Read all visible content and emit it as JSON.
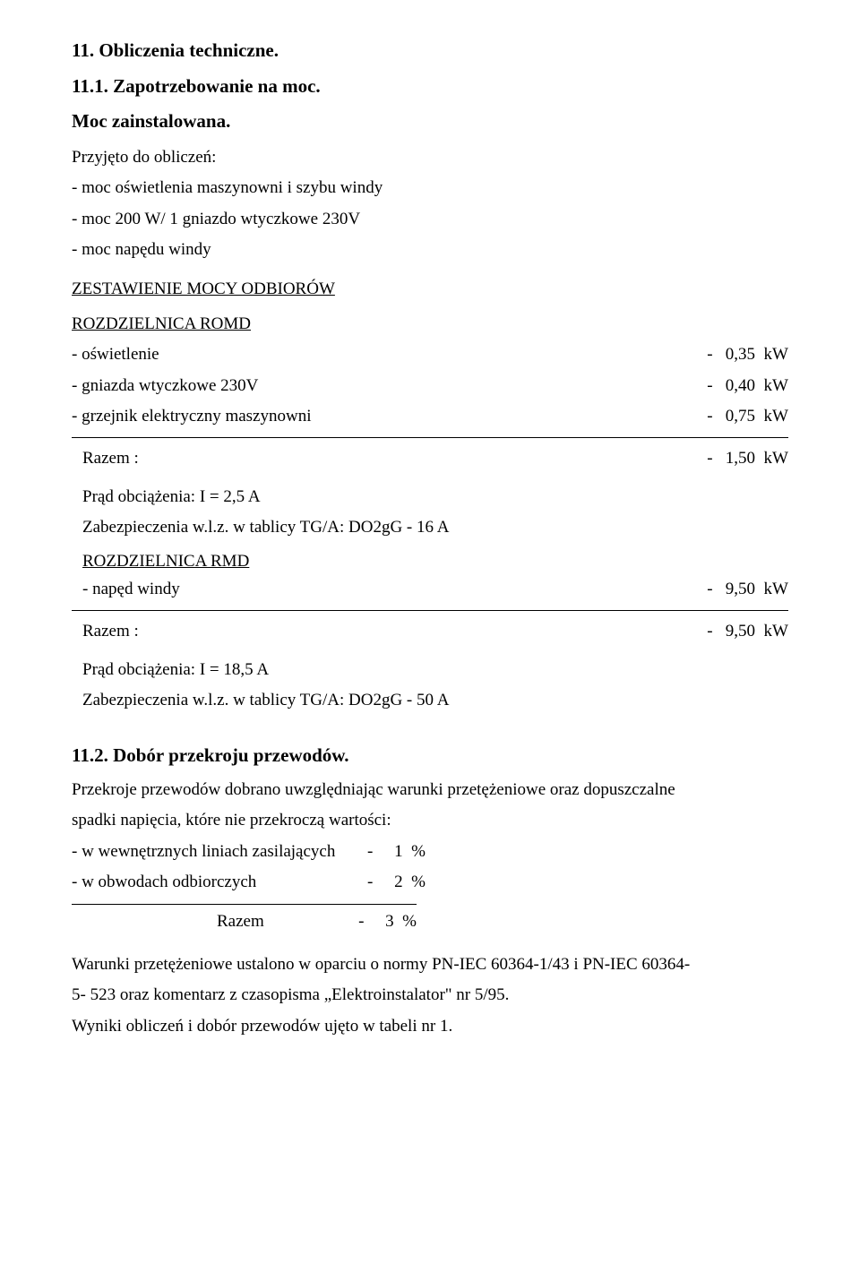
{
  "section11": {
    "title": "11. Obliczenia techniczne.",
    "sub1": "11.1. Zapotrzebowanie na moc.",
    "mocTitle": "Moc zainstalowana.",
    "intro1": "Przyjęto do obliczeń:",
    "intro2": "- moc oświetlenia maszynowni i szybu windy",
    "intro3": "- moc 200 W/ 1 gniazdo wtyczkowe 230V",
    "intro4": "- moc napędu windy",
    "zestHeading": "ZESTAWIENIE MOCY ODBIORÓW",
    "romdHeading": "ROZDZIELNICA ROMD",
    "romdRows": [
      {
        "label": "- oświetlenie",
        "value": "-   0,35  kW"
      },
      {
        "label": "- gniazda wtyczkowe 230V",
        "value": "-   0,40  kW"
      },
      {
        "label": "- grzejnik elektryczny maszynowni",
        "value": "-   0,75  kW"
      }
    ],
    "romdRazemLabel": "Razem :",
    "romdRazemValue": "-   1,50  kW",
    "romdPrad": "Prąd obciążenia:  I =  2,5 A",
    "romdZab": "Zabezpieczenia w.l.z.  w tablicy TG/A:  DO2gG - 16 A",
    "rmdHeading": "ROZDZIELNICA RMD",
    "rmdRow": {
      "label": "- napęd windy",
      "value": "-   9,50  kW"
    },
    "rmdRazemLabel": "Razem :",
    "rmdRazemValue": "-   9,50  kW",
    "rmdPrad": "Prąd obciążenia:  I =  18,5 A",
    "rmdZab": "Zabezpieczenia w.l.z.  w tablicy TG/A:  DO2gG - 50 A"
  },
  "section112": {
    "title": "11.2. Dobór przekroju przewodów.",
    "para1": "Przekroje przewodów dobrano uwzględniając warunki przetężeniowe oraz dopuszczalne",
    "para2": "spadki napięcia, które nie przekroczą wartości:",
    "line1Label": "- w wewnętrznych liniach zasilających",
    "line1Value": "-     1  %",
    "line2Label": "- w obwodach odbiorczych",
    "line2Value": "-     2  %",
    "razemLabel": "Razem",
    "razemValue": "-     3  %",
    "para3": "Warunki przetężeniowe ustalono w oparciu o normy PN-IEC 60364-1/43 i PN-IEC 60364-",
    "para4": "5- 523 oraz  komentarz z czasopisma „Elektroinstalator\" nr 5/95.",
    "para5": "Wyniki obliczeń i dobór przewodów ujęto w tabeli nr 1."
  }
}
